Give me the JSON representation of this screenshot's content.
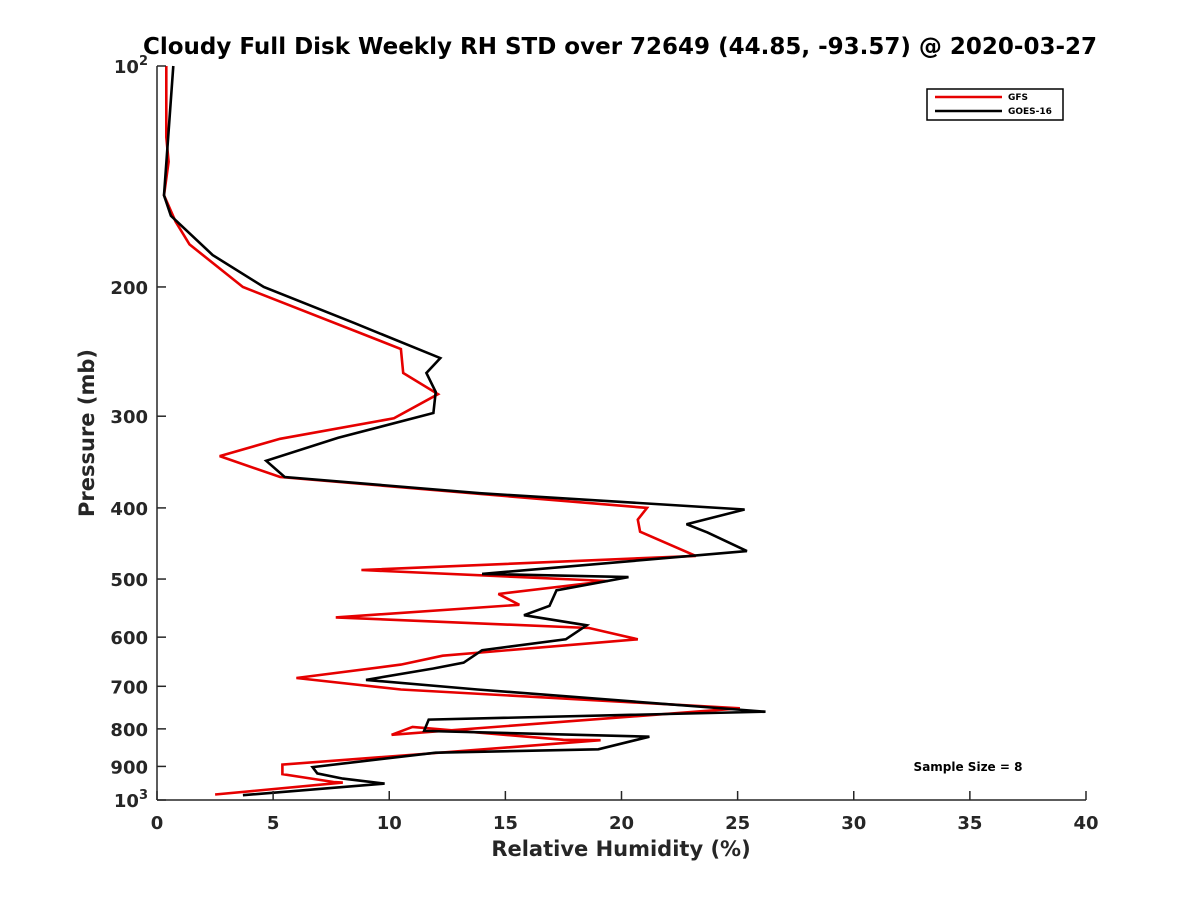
{
  "chart_data": {
    "type": "line",
    "title": "Cloudy Full Disk Weekly RH STD over 72649 (44.85, -93.57) @ 2020-03-27",
    "xlabel": "Relative Humidity (%)",
    "ylabel": "Pressure (mb)",
    "xlim": [
      0,
      40
    ],
    "ylim": [
      100,
      1000
    ],
    "y_scale": "log",
    "y_reversed": true,
    "grid": false,
    "legend_position": "top-right",
    "x_ticks": [
      "0",
      "5",
      "10",
      "15",
      "20",
      "25",
      "30",
      "35",
      "40"
    ],
    "y_ticks": [
      {
        "value": 100,
        "base": "10",
        "exp": "2"
      },
      {
        "value": 200,
        "label": "200"
      },
      {
        "value": 300,
        "label": "300"
      },
      {
        "value": 400,
        "label": "400"
      },
      {
        "value": 500,
        "label": "500"
      },
      {
        "value": 600,
        "label": "600"
      },
      {
        "value": 700,
        "label": "700"
      },
      {
        "value": 800,
        "label": "800"
      },
      {
        "value": 900,
        "label": "900"
      },
      {
        "value": 1000,
        "base": "10",
        "exp": "3"
      }
    ],
    "annotation": "Sample Size = 8",
    "series": [
      {
        "name": "GFS",
        "color": "#e60000",
        "points": [
          [
            0.4,
            100
          ],
          [
            0.4,
            125
          ],
          [
            0.5,
            135
          ],
          [
            0.3,
            150
          ],
          [
            0.8,
            163
          ],
          [
            1.4,
            175
          ],
          [
            3.7,
            200
          ],
          [
            10.5,
            243
          ],
          [
            10.6,
            262
          ],
          [
            12.1,
            280
          ],
          [
            10.2,
            302
          ],
          [
            5.3,
            322
          ],
          [
            2.7,
            340
          ],
          [
            5.3,
            363
          ],
          [
            14.0,
            383
          ],
          [
            21.1,
            400
          ],
          [
            20.7,
            415
          ],
          [
            20.8,
            431
          ],
          [
            23.2,
            465
          ],
          [
            8.8,
            486
          ],
          [
            19.4,
            503
          ],
          [
            14.7,
            524
          ],
          [
            15.6,
            542
          ],
          [
            7.7,
            564
          ],
          [
            18.6,
            583
          ],
          [
            20.7,
            604
          ],
          [
            12.3,
            636
          ],
          [
            10.5,
            654
          ],
          [
            6.0,
            682
          ],
          [
            10.5,
            707
          ],
          [
            25.1,
            750
          ],
          [
            10.1,
            815
          ],
          [
            11.0,
            795
          ],
          [
            17.5,
            828
          ],
          [
            19.1,
            829
          ],
          [
            12.0,
            863
          ],
          [
            5.4,
            895
          ],
          [
            5.4,
            922
          ],
          [
            7.6,
            945
          ],
          [
            8.0,
            947
          ],
          [
            2.5,
            983
          ]
        ]
      },
      {
        "name": "GOES-16",
        "color": "#000000",
        "points": [
          [
            0.7,
            100
          ],
          [
            0.3,
            150
          ],
          [
            0.6,
            160
          ],
          [
            2.4,
            181
          ],
          [
            4.6,
            200
          ],
          [
            8.5,
            224
          ],
          [
            12.2,
            250
          ],
          [
            11.6,
            262
          ],
          [
            12.0,
            278
          ],
          [
            11.9,
            297
          ],
          [
            7.8,
            321
          ],
          [
            4.7,
            345
          ],
          [
            5.5,
            363
          ],
          [
            13.9,
            382
          ],
          [
            25.3,
            402
          ],
          [
            22.8,
            421
          ],
          [
            23.7,
            432
          ],
          [
            25.4,
            458
          ],
          [
            14.0,
            492
          ],
          [
            20.3,
            497
          ],
          [
            17.2,
            518
          ],
          [
            16.9,
            544
          ],
          [
            15.8,
            560
          ],
          [
            18.5,
            578
          ],
          [
            17.6,
            604
          ],
          [
            14.0,
            625
          ],
          [
            13.2,
            650
          ],
          [
            11.9,
            662
          ],
          [
            9.0,
            686
          ],
          [
            13.8,
            707
          ],
          [
            26.2,
            758
          ],
          [
            11.7,
            777
          ],
          [
            11.5,
            805
          ],
          [
            21.2,
            820
          ],
          [
            19.0,
            853
          ],
          [
            12.0,
            862
          ],
          [
            6.7,
            902
          ],
          [
            6.9,
            920
          ],
          [
            8.0,
            935
          ],
          [
            9.8,
            950
          ],
          [
            3.7,
            985
          ]
        ]
      }
    ]
  }
}
